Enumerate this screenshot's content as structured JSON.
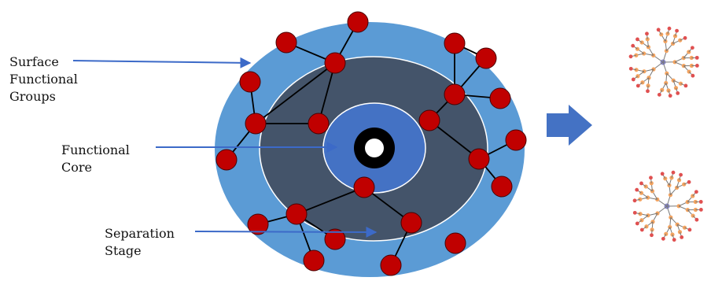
{
  "labels": {
    "surface": "Surface\nFunctional\nGroups",
    "core": "Functional\nCore",
    "separation": "Separation\nStage"
  },
  "colors": {
    "outer_ring": "#5b9bd5",
    "inner_disk": "#44546a",
    "core_disk": "#4472c4",
    "node_fill": "#c00000",
    "dendrimer_node": "#f4a460",
    "dendrimer_center": "#8888cc",
    "arrow": "#4472c4",
    "pointer": "#3c6ac8"
  },
  "icons": {
    "right_arrow": "block-arrow-right-icon",
    "dendrimer": "dendrimer-molecule-icon"
  }
}
